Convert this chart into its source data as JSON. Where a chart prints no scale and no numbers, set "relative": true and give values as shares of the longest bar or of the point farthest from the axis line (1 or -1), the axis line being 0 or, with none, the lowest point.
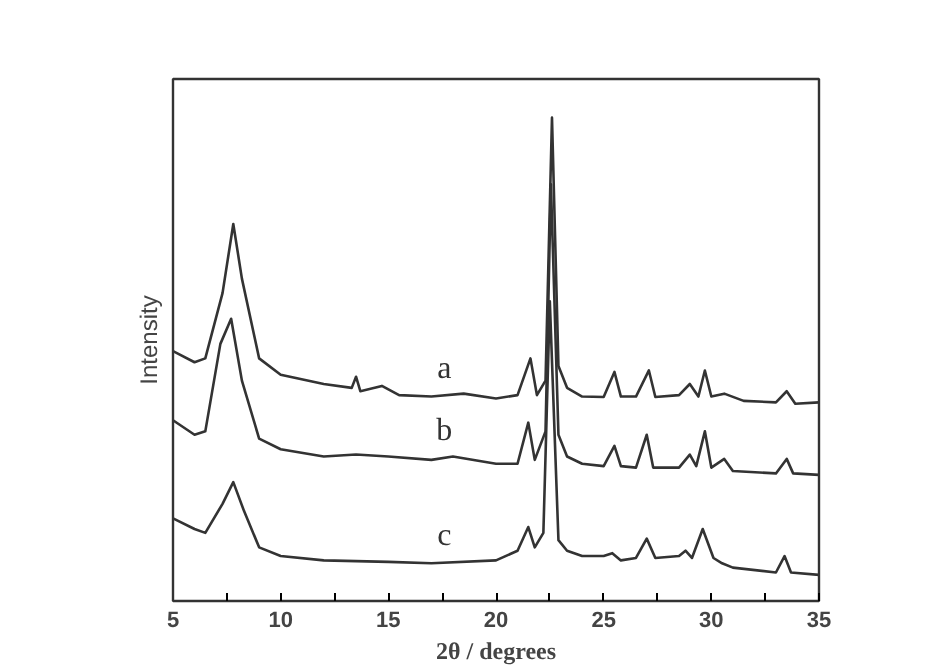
{
  "chart_data": {
    "type": "line",
    "xlabel": "2θ / degrees",
    "ylabel": "Intensity",
    "relative": true,
    "xlim": [
      5,
      35
    ],
    "xticks": [
      5,
      {
        "value": 7.5,
        "label": null
      },
      10,
      {
        "value": 12.5,
        "label": null
      },
      15,
      {
        "value": 17.5,
        "label": null
      },
      20,
      {
        "value": 22.5,
        "label": null
      },
      25,
      {
        "value": 27.5,
        "label": null
      },
      30,
      {
        "value": 32.5,
        "label": null
      },
      35
    ],
    "grid": false,
    "marker": "none",
    "line_style": "solid",
    "series": [
      {
        "name": "a",
        "color": "#333333",
        "x": [
          5,
          6,
          6.5,
          7.3,
          7.8,
          8.2,
          9,
          10,
          12,
          13.3,
          13.5,
          13.7,
          14.7,
          15.5,
          17,
          18.5,
          20,
          21,
          21.6,
          21.9,
          22.3,
          22.6,
          22.9,
          23.3,
          24,
          25,
          25.5,
          25.8,
          26.5,
          27.1,
          27.4,
          28.5,
          29,
          29.4,
          29.7,
          30,
          30.6,
          31.5,
          33,
          33.5,
          33.9,
          35
        ],
        "values": [
          0.517,
          0.494,
          0.502,
          0.637,
          0.78,
          0.667,
          0.502,
          0.468,
          0.449,
          0.441,
          0.464,
          0.434,
          0.445,
          0.426,
          0.423,
          0.429,
          0.419,
          0.426,
          0.502,
          0.426,
          0.456,
          1.0,
          0.486,
          0.441,
          0.423,
          0.422,
          0.474,
          0.423,
          0.423,
          0.477,
          0.422,
          0.426,
          0.449,
          0.423,
          0.477,
          0.423,
          0.429,
          0.414,
          0.411,
          0.434,
          0.408,
          0.411
        ]
      },
      {
        "name": "b",
        "color": "#333333",
        "x": [
          5,
          6,
          6.5,
          7.2,
          7.7,
          8.2,
          9,
          10,
          12,
          13.5,
          15,
          17,
          18,
          20,
          21,
          21.5,
          21.8,
          22.3,
          22.55,
          22.9,
          23.3,
          24,
          25,
          25.5,
          25.8,
          26.5,
          27,
          27.3,
          28.5,
          29,
          29.3,
          29.7,
          30,
          30.6,
          31,
          33,
          33.5,
          33.8,
          35
        ],
        "values": [
          0.374,
          0.344,
          0.351,
          0.532,
          0.584,
          0.456,
          0.336,
          0.314,
          0.299,
          0.303,
          0.299,
          0.292,
          0.299,
          0.284,
          0.284,
          0.369,
          0.292,
          0.351,
          0.862,
          0.344,
          0.299,
          0.284,
          0.279,
          0.321,
          0.279,
          0.276,
          0.344,
          0.276,
          0.276,
          0.303,
          0.279,
          0.351,
          0.276,
          0.294,
          0.269,
          0.264,
          0.294,
          0.264,
          0.261
        ]
      },
      {
        "name": "c",
        "color": "#333333",
        "x": [
          5,
          6,
          6.5,
          7.3,
          7.8,
          8.3,
          9,
          10,
          12,
          15,
          17,
          20,
          21,
          21.5,
          21.8,
          22.2,
          22.5,
          22.9,
          23.3,
          24,
          25,
          25.4,
          25.8,
          26.5,
          27,
          27.4,
          28.5,
          28.8,
          29.1,
          29.6,
          30.1,
          30.5,
          31,
          33,
          33.4,
          33.7,
          35
        ],
        "values": [
          0.171,
          0.149,
          0.141,
          0.201,
          0.246,
          0.186,
          0.111,
          0.093,
          0.084,
          0.081,
          0.078,
          0.084,
          0.104,
          0.153,
          0.111,
          0.141,
          0.62,
          0.126,
          0.104,
          0.093,
          0.093,
          0.099,
          0.084,
          0.089,
          0.129,
          0.089,
          0.093,
          0.104,
          0.089,
          0.149,
          0.089,
          0.078,
          0.069,
          0.059,
          0.093,
          0.059,
          0.054
        ]
      }
    ]
  }
}
